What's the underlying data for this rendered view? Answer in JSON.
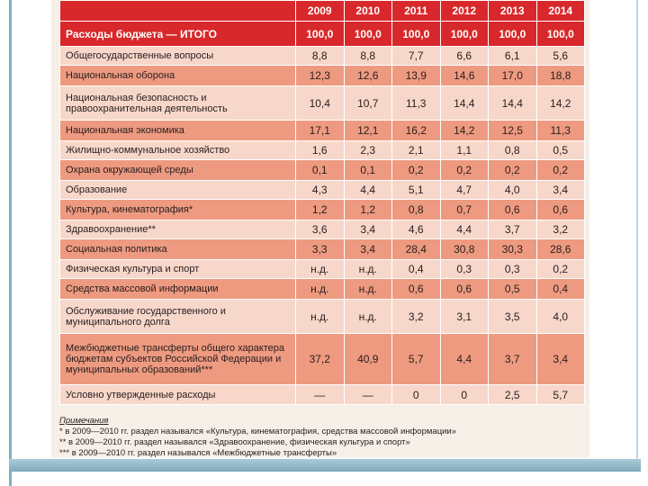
{
  "table": {
    "header": [
      "",
      "2009",
      "2010",
      "2011",
      "2012",
      "2013",
      "2014"
    ],
    "total": {
      "name": "Расходы бюджета — ИТОГО",
      "values": [
        "100,0",
        "100,0",
        "100,0",
        "100,0",
        "100,0",
        "100,0"
      ]
    },
    "rows": [
      {
        "name": "Общегосударственные вопросы",
        "values": [
          "8,8",
          "8,8",
          "7,7",
          "6,6",
          "6,1",
          "5,6"
        ],
        "shade": "light"
      },
      {
        "name": "Национальная оборона",
        "values": [
          "12,3",
          "12,6",
          "13,9",
          "14,6",
          "17,0",
          "18,8"
        ],
        "shade": "dark"
      },
      {
        "name": "Национальная безопасность и правоохранительная деятельность",
        "values": [
          "10,4",
          "10,7",
          "11,3",
          "14,4",
          "14,4",
          "14,2"
        ],
        "shade": "light"
      },
      {
        "name": "Национальная экономика",
        "values": [
          "17,1",
          "12,1",
          "16,2",
          "14,2",
          "12,5",
          "11,3"
        ],
        "shade": "dark"
      },
      {
        "name": "Жилищно-коммунальное хозяйство",
        "values": [
          "1,6",
          "2,3",
          "2,1",
          "1,1",
          "0,8",
          "0,5"
        ],
        "shade": "light"
      },
      {
        "name": "Охрана окружающей среды",
        "values": [
          "0,1",
          "0,1",
          "0,2",
          "0,2",
          "0,2",
          "0,2"
        ],
        "shade": "dark"
      },
      {
        "name": "Образование",
        "values": [
          "4,3",
          "4,4",
          "5,1",
          "4,7",
          "4,0",
          "3,4"
        ],
        "shade": "light"
      },
      {
        "name": "Культура, кинематография*",
        "values": [
          "1,2",
          "1,2",
          "0,8",
          "0,7",
          "0,6",
          "0,6"
        ],
        "shade": "dark"
      },
      {
        "name": "Здравоохранение**",
        "values": [
          "3,6",
          "3,4",
          "4,6",
          "4,4",
          "3,7",
          "3,2"
        ],
        "shade": "light"
      },
      {
        "name": "Социальная политика",
        "values": [
          "3,3",
          "3,4",
          "28,4",
          "30,8",
          "30,3",
          "28,6"
        ],
        "shade": "dark"
      },
      {
        "name": "Физическая культура и спорт",
        "values": [
          "н.д.",
          "н.д.",
          "0,4",
          "0,3",
          "0,3",
          "0,2"
        ],
        "shade": "light"
      },
      {
        "name": "Средства массовой информации",
        "values": [
          "н.д.",
          "н.д.",
          "0,6",
          "0,6",
          "0,5",
          "0,4"
        ],
        "shade": "dark"
      },
      {
        "name": "Обслуживание государственного и муниципального долга",
        "values": [
          "н.д.",
          "н.д.",
          "3,2",
          "3,1",
          "3,5",
          "4,0"
        ],
        "shade": "light"
      },
      {
        "name": "Межбюджетные трансферты общего характера бюджетам субъектов Российской Федерации и муниципальных образований***",
        "values": [
          "37,2",
          "40,9",
          "5,7",
          "4,4",
          "3,7",
          "3,4"
        ],
        "shade": "dark"
      },
      {
        "name": "Условно утвержденные расходы",
        "values": [
          "—",
          "—",
          "0",
          "0",
          "2,5",
          "5,7"
        ],
        "shade": "light"
      }
    ]
  },
  "notes": {
    "title": "Примечания",
    "lines": [
      "* в 2009—2010 гг. раздел назывался «Культура, кинематография, средства массовой информации»",
      "** в 2009—2010 гг. раздел назывался «Здравоохранение, физическая культура и спорт»",
      "*** в 2009—2010 гг. раздел назывался «Межбюджетные трансферты»"
    ]
  }
}
